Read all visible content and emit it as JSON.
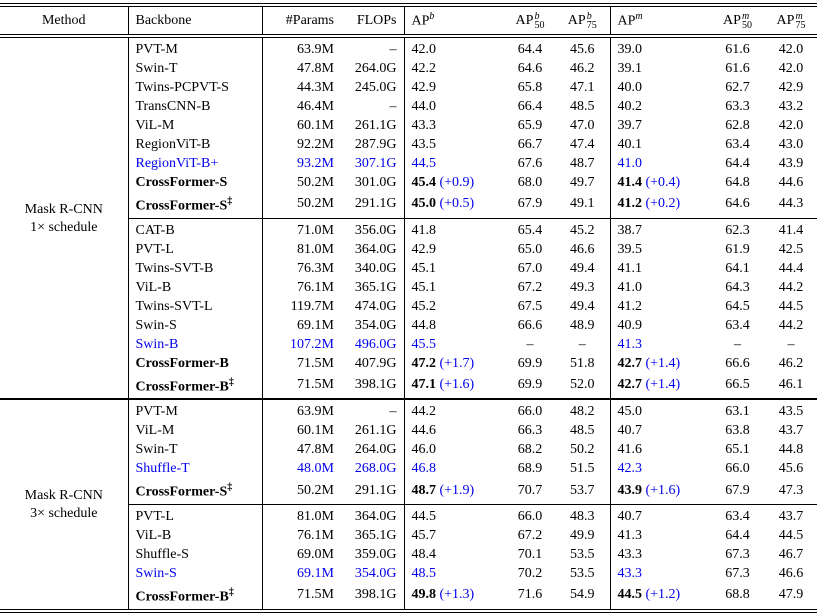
{
  "table": {
    "colors": {
      "accent_blue": "#0000EE",
      "text": "#000000"
    },
    "header": {
      "method": "Method",
      "backbone": "Backbone",
      "params": "#Params",
      "flops": "FLOPs",
      "ap_b": {
        "base": "AP",
        "sup": "b",
        "sub": ""
      },
      "ap50_b": {
        "base": "AP",
        "sup": "b",
        "sub": "50"
      },
      "ap75_b": {
        "base": "AP",
        "sup": "b",
        "sub": "75"
      },
      "ap_m": {
        "base": "AP",
        "sup": "m",
        "sub": ""
      },
      "ap50_m": {
        "base": "AP",
        "sup": "m",
        "sub": "50"
      },
      "ap75_m": {
        "base": "AP",
        "sup": "m",
        "sub": "75"
      }
    },
    "blocks": [
      {
        "method_label": [
          "Mask R-CNN",
          "1× schedule"
        ],
        "groups": [
          {
            "rows": [
              {
                "backbone": "PVT-M",
                "mark": "",
                "params": "63.9M",
                "flops": "–",
                "apb": "42.0",
                "apb_d": "",
                "ap50b": "64.4",
                "ap75b": "45.6",
                "apm": "39.0",
                "apm_d": "",
                "ap50m": "61.6",
                "ap75m": "42.0",
                "style": "plain"
              },
              {
                "backbone": "Swin-T",
                "mark": "",
                "params": "47.8M",
                "flops": "264.0G",
                "apb": "42.2",
                "apb_d": "",
                "ap50b": "64.6",
                "ap75b": "46.2",
                "apm": "39.1",
                "apm_d": "",
                "ap50m": "61.6",
                "ap75m": "42.0",
                "style": "plain"
              },
              {
                "backbone": "Twins-PCPVT-S",
                "mark": "",
                "params": "44.3M",
                "flops": "245.0G",
                "apb": "42.9",
                "apb_d": "",
                "ap50b": "65.8",
                "ap75b": "47.1",
                "apm": "40.0",
                "apm_d": "",
                "ap50m": "62.7",
                "ap75m": "42.9",
                "style": "plain"
              },
              {
                "backbone": "TransCNN-B",
                "mark": "",
                "params": "46.4M",
                "flops": "–",
                "apb": "44.0",
                "apb_d": "",
                "ap50b": "66.4",
                "ap75b": "48.5",
                "apm": "40.2",
                "apm_d": "",
                "ap50m": "63.3",
                "ap75m": "43.2",
                "style": "plain"
              },
              {
                "backbone": "ViL-M",
                "mark": "",
                "params": "60.1M",
                "flops": "261.1G",
                "apb": "43.3",
                "apb_d": "",
                "ap50b": "65.9",
                "ap75b": "47.0",
                "apm": "39.7",
                "apm_d": "",
                "ap50m": "62.8",
                "ap75m": "42.0",
                "style": "plain"
              },
              {
                "backbone": "RegionViT-B",
                "mark": "",
                "params": "92.2M",
                "flops": "287.9G",
                "apb": "43.5",
                "apb_d": "",
                "ap50b": "66.7",
                "ap75b": "47.4",
                "apm": "40.1",
                "apm_d": "",
                "ap50m": "63.4",
                "ap75m": "43.0",
                "style": "plain"
              },
              {
                "backbone": "RegionViT-B+",
                "mark": "",
                "params": "93.2M",
                "flops": "307.1G",
                "apb": "44.5",
                "apb_d": "",
                "ap50b": "67.6",
                "ap75b": "48.7",
                "apm": "41.0",
                "apm_d": "",
                "ap50m": "64.4",
                "ap75m": "43.9",
                "style": "blue"
              },
              {
                "backbone": "CrossFormer-S",
                "mark": "",
                "params": "50.2M",
                "flops": "301.0G",
                "apb": "45.4",
                "apb_d": "+0.9",
                "ap50b": "68.0",
                "ap75b": "49.7",
                "apm": "41.4",
                "apm_d": "+0.4",
                "ap50m": "64.8",
                "ap75m": "44.6",
                "style": "bold"
              },
              {
                "backbone": "CrossFormer-S",
                "mark": "‡",
                "params": "50.2M",
                "flops": "291.1G",
                "apb": "45.0",
                "apb_d": "+0.5",
                "ap50b": "67.9",
                "ap75b": "49.1",
                "apm": "41.2",
                "apm_d": "+0.2",
                "ap50m": "64.6",
                "ap75m": "44.3",
                "style": "bold"
              }
            ]
          },
          {
            "rows": [
              {
                "backbone": "CAT-B",
                "mark": "",
                "params": "71.0M",
                "flops": "356.0G",
                "apb": "41.8",
                "apb_d": "",
                "ap50b": "65.4",
                "ap75b": "45.2",
                "apm": "38.7",
                "apm_d": "",
                "ap50m": "62.3",
                "ap75m": "41.4",
                "style": "plain"
              },
              {
                "backbone": "PVT-L",
                "mark": "",
                "params": "81.0M",
                "flops": "364.0G",
                "apb": "42.9",
                "apb_d": "",
                "ap50b": "65.0",
                "ap75b": "46.6",
                "apm": "39.5",
                "apm_d": "",
                "ap50m": "61.9",
                "ap75m": "42.5",
                "style": "plain"
              },
              {
                "backbone": "Twins-SVT-B",
                "mark": "",
                "params": "76.3M",
                "flops": "340.0G",
                "apb": "45.1",
                "apb_d": "",
                "ap50b": "67.0",
                "ap75b": "49.4",
                "apm": "41.1",
                "apm_d": "",
                "ap50m": "64.1",
                "ap75m": "44.4",
                "style": "plain"
              },
              {
                "backbone": "ViL-B",
                "mark": "",
                "params": "76.1M",
                "flops": "365.1G",
                "apb": "45.1",
                "apb_d": "",
                "ap50b": "67.2",
                "ap75b": "49.3",
                "apm": "41.0",
                "apm_d": "",
                "ap50m": "64.3",
                "ap75m": "44.2",
                "style": "plain"
              },
              {
                "backbone": "Twins-SVT-L",
                "mark": "",
                "params": "119.7M",
                "flops": "474.0G",
                "apb": "45.2",
                "apb_d": "",
                "ap50b": "67.5",
                "ap75b": "49.4",
                "apm": "41.2",
                "apm_d": "",
                "ap50m": "64.5",
                "ap75m": "44.5",
                "style": "plain"
              },
              {
                "backbone": "Swin-S",
                "mark": "",
                "params": "69.1M",
                "flops": "354.0G",
                "apb": "44.8",
                "apb_d": "",
                "ap50b": "66.6",
                "ap75b": "48.9",
                "apm": "40.9",
                "apm_d": "",
                "ap50m": "63.4",
                "ap75m": "44.2",
                "style": "plain"
              },
              {
                "backbone": "Swin-B",
                "mark": "",
                "params": "107.2M",
                "flops": "496.0G",
                "apb": "45.5",
                "apb_d": "",
                "ap50b": "–",
                "ap75b": "–",
                "apm": "41.3",
                "apm_d": "",
                "ap50m": "–",
                "ap75m": "–",
                "style": "blue"
              },
              {
                "backbone": "CrossFormer-B",
                "mark": "",
                "params": "71.5M",
                "flops": "407.9G",
                "apb": "47.2",
                "apb_d": "+1.7",
                "ap50b": "69.9",
                "ap75b": "51.8",
                "apm": "42.7",
                "apm_d": "+1.4",
                "ap50m": "66.6",
                "ap75m": "46.2",
                "style": "bold"
              },
              {
                "backbone": "CrossFormer-B",
                "mark": "‡",
                "params": "71.5M",
                "flops": "398.1G",
                "apb": "47.1",
                "apb_d": "+1.6",
                "ap50b": "69.9",
                "ap75b": "52.0",
                "apm": "42.7",
                "apm_d": "+1.4",
                "ap50m": "66.5",
                "ap75m": "46.1",
                "style": "bold"
              }
            ]
          }
        ]
      },
      {
        "method_label": [
          "Mask R-CNN",
          "3× schedule"
        ],
        "groups": [
          {
            "rows": [
              {
                "backbone": "PVT-M",
                "mark": "",
                "params": "63.9M",
                "flops": "–",
                "apb": "44.2",
                "apb_d": "",
                "ap50b": "66.0",
                "ap75b": "48.2",
                "apm": "45.0",
                "apm_d": "",
                "ap50m": "63.1",
                "ap75m": "43.5",
                "style": "plain"
              },
              {
                "backbone": "ViL-M",
                "mark": "",
                "params": "60.1M",
                "flops": "261.1G",
                "apb": "44.6",
                "apb_d": "",
                "ap50b": "66.3",
                "ap75b": "48.5",
                "apm": "40.7",
                "apm_d": "",
                "ap50m": "63.8",
                "ap75m": "43.7",
                "style": "plain"
              },
              {
                "backbone": "Swin-T",
                "mark": "",
                "params": "47.8M",
                "flops": "264.0G",
                "apb": "46.0",
                "apb_d": "",
                "ap50b": "68.2",
                "ap75b": "50.2",
                "apm": "41.6",
                "apm_d": "",
                "ap50m": "65.1",
                "ap75m": "44.8",
                "style": "plain"
              },
              {
                "backbone": "Shuffle-T",
                "mark": "",
                "params": "48.0M",
                "flops": "268.0G",
                "apb": "46.8",
                "apb_d": "",
                "ap50b": "68.9",
                "ap75b": "51.5",
                "apm": "42.3",
                "apm_d": "",
                "ap50m": "66.0",
                "ap75m": "45.6",
                "style": "blue"
              },
              {
                "backbone": "CrossFormer-S",
                "mark": "‡",
                "params": "50.2M",
                "flops": "291.1G",
                "apb": "48.7",
                "apb_d": "+1.9",
                "ap50b": "70.7",
                "ap75b": "53.7",
                "apm": "43.9",
                "apm_d": "+1.6",
                "ap50m": "67.9",
                "ap75m": "47.3",
                "style": "bold"
              }
            ]
          },
          {
            "rows": [
              {
                "backbone": "PVT-L",
                "mark": "",
                "params": "81.0M",
                "flops": "364.0G",
                "apb": "44.5",
                "apb_d": "",
                "ap50b": "66.0",
                "ap75b": "48.3",
                "apm": "40.7",
                "apm_d": "",
                "ap50m": "63.4",
                "ap75m": "43.7",
                "style": "plain"
              },
              {
                "backbone": "ViL-B",
                "mark": "",
                "params": "76.1M",
                "flops": "365.1G",
                "apb": "45.7",
                "apb_d": "",
                "ap50b": "67.2",
                "ap75b": "49.9",
                "apm": "41.3",
                "apm_d": "",
                "ap50m": "64.4",
                "ap75m": "44.5",
                "style": "plain"
              },
              {
                "backbone": "Shuffle-S",
                "mark": "",
                "params": "69.0M",
                "flops": "359.0G",
                "apb": "48.4",
                "apb_d": "",
                "ap50b": "70.1",
                "ap75b": "53.5",
                "apm": "43.3",
                "apm_d": "",
                "ap50m": "67.3",
                "ap75m": "46.7",
                "style": "plain"
              },
              {
                "backbone": "Swin-S",
                "mark": "",
                "params": "69.1M",
                "flops": "354.0G",
                "apb": "48.5",
                "apb_d": "",
                "ap50b": "70.2",
                "ap75b": "53.5",
                "apm": "43.3",
                "apm_d": "",
                "ap50m": "67.3",
                "ap75m": "46.6",
                "style": "blue"
              },
              {
                "backbone": "CrossFormer-B",
                "mark": "‡",
                "params": "71.5M",
                "flops": "398.1G",
                "apb": "49.8",
                "apb_d": "+1.3",
                "ap50b": "71.6",
                "ap75b": "54.9",
                "apm": "44.5",
                "apm_d": "+1.2",
                "ap50m": "68.8",
                "ap75m": "47.9",
                "style": "bold"
              }
            ]
          }
        ]
      }
    ]
  }
}
